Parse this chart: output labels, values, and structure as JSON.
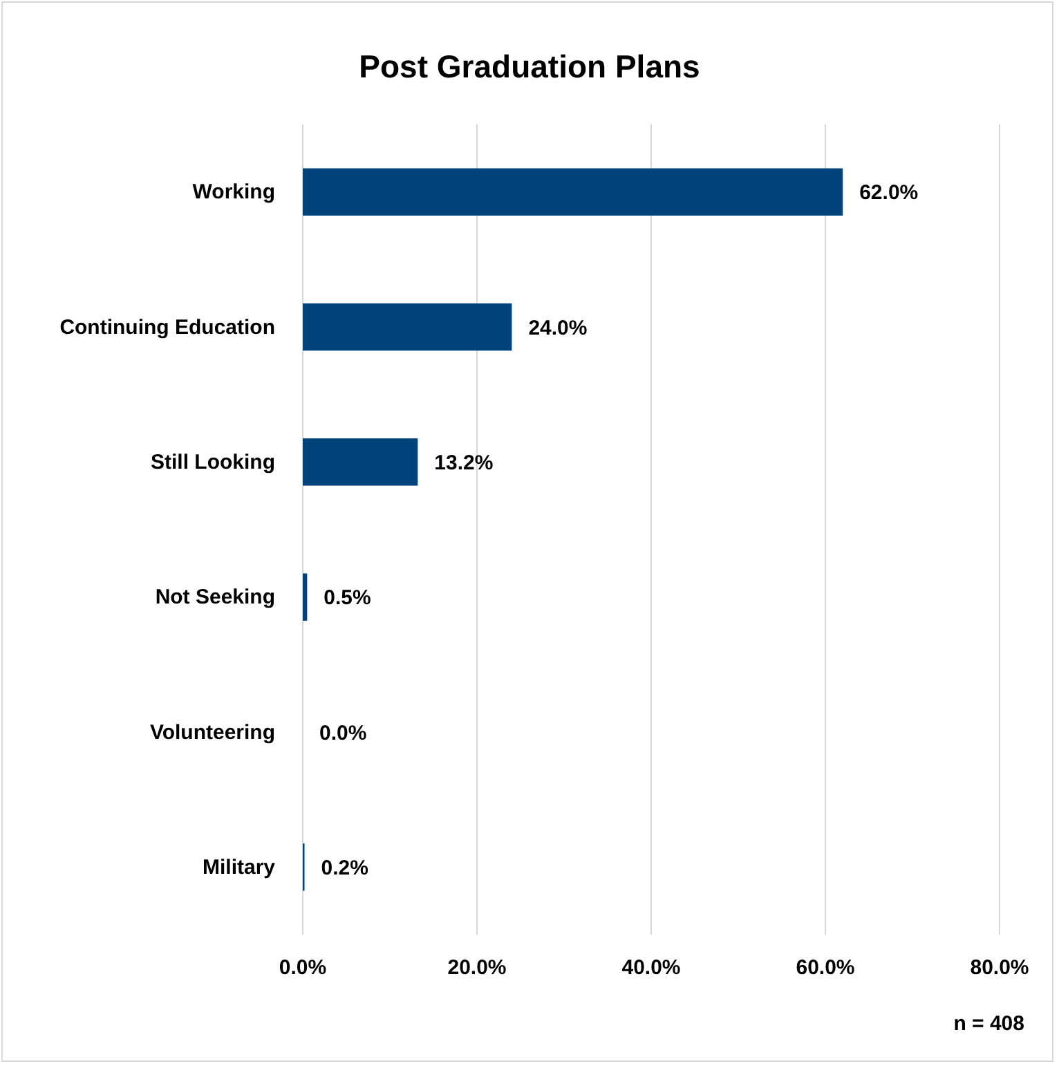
{
  "chart_data": {
    "type": "bar",
    "orientation": "horizontal",
    "title": "Post Graduation Plans",
    "categories": [
      "Working",
      "Continuing Education",
      "Still Looking",
      "Not Seeking",
      "Volunteering",
      "Military"
    ],
    "values": [
      62.0,
      24.0,
      13.2,
      0.5,
      0.0,
      0.2
    ],
    "value_labels": [
      "62.0%",
      "24.0%",
      "13.2%",
      "0.5%",
      "0.0%",
      "0.2%"
    ],
    "color": "#00427a",
    "xlim": [
      0,
      80
    ],
    "xticks": [
      {
        "value": 0,
        "label": "0.0%"
      },
      {
        "value": 20,
        "label": "20.0%"
      },
      {
        "value": 40,
        "label": "40.0%"
      },
      {
        "value": 60,
        "label": "60.0%"
      },
      {
        "value": 80,
        "label": "80.0%"
      }
    ],
    "grid": "x",
    "annotations": [
      "n = 408"
    ]
  }
}
